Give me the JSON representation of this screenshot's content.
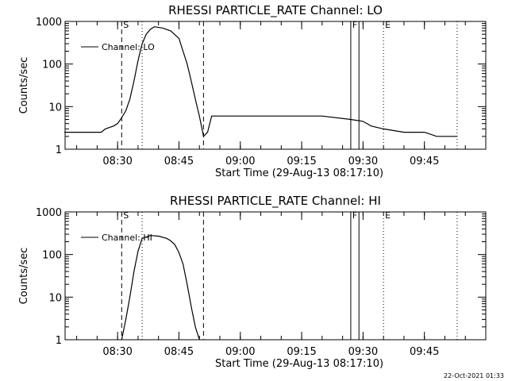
{
  "chart_data": [
    {
      "type": "line",
      "title": "RHESSI PARTICLE_RATE Channel: LO",
      "xlabel": "Start Time (29-Aug-13 08:17:10)",
      "ylabel": "Counts/sec",
      "y_scale": "log",
      "ylim": [
        1,
        1000
      ],
      "xlim": [
        "08:17:10",
        "10:00:00"
      ],
      "x_tick_labels": [
        "08:30",
        "08:45",
        "09:00",
        "09:15",
        "09:30",
        "09:45"
      ],
      "y_tick_labels": [
        "1",
        "10",
        "100",
        "1000"
      ],
      "legend": {
        "entries": [
          "Channel: LO"
        ],
        "placement": "top-left"
      },
      "markers": [
        {
          "label": "S",
          "time": "08:31",
          "style": "dashed"
        },
        {
          "label": "",
          "time": "08:36",
          "style": "dotted"
        },
        {
          "label": "",
          "time": "08:51",
          "style": "dashed"
        },
        {
          "label": "F",
          "time": "09:27",
          "style": "solid"
        },
        {
          "label": "",
          "time": "09:29",
          "style": "solid"
        },
        {
          "label": "E",
          "time": "09:35",
          "style": "dotted"
        },
        {
          "label": "",
          "time": "09:53",
          "style": "dotted"
        }
      ],
      "series": [
        {
          "name": "Channel: LO",
          "x": [
            "08:17",
            "08:26",
            "08:27",
            "08:29",
            "08:30",
            "08:31",
            "08:32",
            "08:33",
            "08:34",
            "08:35",
            "08:36",
            "08:37",
            "08:38",
            "08:39",
            "08:41",
            "08:43",
            "08:45",
            "08:46",
            "08:47",
            "08:48",
            "08:49",
            "08:50",
            "08:51",
            "08:52",
            "08:53",
            "09:00",
            "09:10",
            "09:20",
            "09:27",
            "09:30",
            "09:32",
            "09:35",
            "09:40",
            "09:45",
            "09:48",
            "09:50",
            "09:53"
          ],
          "y": [
            2.5,
            2.5,
            3.0,
            3.5,
            4,
            5.5,
            8,
            15,
            40,
            120,
            300,
            500,
            650,
            750,
            700,
            600,
            400,
            200,
            100,
            40,
            15,
            6,
            2,
            2.5,
            6,
            6,
            6,
            6,
            5,
            4.5,
            3.5,
            3,
            2.5,
            2.5,
            2,
            2,
            2
          ]
        }
      ]
    },
    {
      "type": "line",
      "title": "RHESSI PARTICLE_RATE Channel: HI",
      "xlabel": "Start Time (29-Aug-13 08:17:10)",
      "ylabel": "Counts/sec",
      "y_scale": "log",
      "ylim": [
        1,
        1000
      ],
      "xlim": [
        "08:17:10",
        "10:00:00"
      ],
      "x_tick_labels": [
        "08:30",
        "08:45",
        "09:00",
        "09:15",
        "09:30",
        "09:45"
      ],
      "y_tick_labels": [
        "1",
        "10",
        "100",
        "1000"
      ],
      "legend": {
        "entries": [
          "Channel: HI"
        ],
        "placement": "top-left"
      },
      "markers": [
        {
          "label": "S",
          "time": "08:31",
          "style": "dashed"
        },
        {
          "label": "",
          "time": "08:36",
          "style": "dotted"
        },
        {
          "label": "",
          "time": "08:51",
          "style": "dashed"
        },
        {
          "label": "F",
          "time": "09:27",
          "style": "solid"
        },
        {
          "label": "",
          "time": "09:29",
          "style": "solid"
        },
        {
          "label": "E",
          "time": "09:35",
          "style": "dotted"
        },
        {
          "label": "",
          "time": "09:53",
          "style": "dotted"
        }
      ],
      "series": [
        {
          "name": "Channel: HI",
          "x": [
            "08:31",
            "08:32",
            "08:33",
            "08:34",
            "08:35",
            "08:36",
            "08:38",
            "08:40",
            "08:42",
            "08:43",
            "08:44",
            "08:45",
            "08:46",
            "08:47",
            "08:48",
            "08:49",
            "08:50"
          ],
          "y": [
            1,
            3,
            10,
            40,
            120,
            240,
            280,
            270,
            240,
            210,
            170,
            110,
            60,
            20,
            6,
            2,
            1
          ]
        }
      ]
    }
  ],
  "timestamp": "22-Oct-2021 01:33"
}
